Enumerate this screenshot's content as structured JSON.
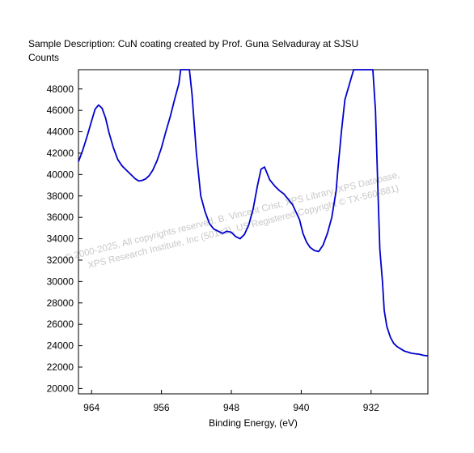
{
  "chart_data": {
    "type": "line",
    "title": "Sample Description:  CuN coating created by Prof. Guna Selvaduray at SJSU",
    "ylabel": "Counts",
    "xlabel": "Binding Energy, (eV)",
    "xlim": [
      965.5,
      925.5
    ],
    "ylim": [
      19500,
      49800
    ],
    "x_reversed": true,
    "x_ticks": [
      964,
      956,
      948,
      940,
      932
    ],
    "x_tick_labels": [
      "964",
      "956",
      "948",
      "940",
      "932"
    ],
    "y_ticks": [
      20000,
      22000,
      24000,
      26000,
      28000,
      30000,
      32000,
      34000,
      36000,
      38000,
      40000,
      42000,
      44000,
      46000,
      48000
    ],
    "y_tick_labels": [
      "20000",
      "22000",
      "24000",
      "26000",
      "28000",
      "30000",
      "32000",
      "34000",
      "36000",
      "38000",
      "40000",
      "42000",
      "44000",
      "46000",
      "48000"
    ],
    "grid": false,
    "line_color": "#0000cc",
    "series": [
      {
        "x": [
          965.5,
          965.0,
          964.5,
          964.0,
          963.6,
          963.2,
          962.8,
          962.4,
          962.0,
          961.5,
          961.0,
          960.5,
          960.0,
          959.5,
          959.0,
          958.6,
          958.2,
          957.8,
          957.4,
          957.0,
          956.5,
          956.0,
          955.5,
          955.0,
          954.5,
          954.0,
          953.8,
          953.4,
          953.0,
          952.8,
          952.5,
          952.0,
          951.5,
          951.0,
          950.5,
          950.0,
          949.5,
          949.0,
          948.5,
          948.0,
          947.5,
          947.0,
          946.5,
          946.0,
          945.5,
          945.0,
          944.6,
          944.2,
          944.0,
          943.6,
          943.0,
          942.5,
          942.0,
          941.5,
          941.0,
          940.6,
          940.2,
          939.8,
          939.4,
          939.0,
          938.5,
          938.0,
          937.5,
          937.0,
          936.5,
          936.0,
          935.8,
          935.4,
          935.0,
          934.0,
          933.0,
          932.3,
          932.0,
          931.8,
          931.5,
          931.2,
          931.0,
          930.7,
          930.5,
          930.2,
          929.8,
          929.4,
          929.0,
          928.6,
          928.2,
          927.8,
          927.4,
          927.0,
          926.5,
          926.0,
          925.5
        ],
        "y": [
          41200,
          42300,
          43600,
          45000,
          46100,
          46500,
          46200,
          45300,
          43900,
          42500,
          41400,
          40800,
          40400,
          40000,
          39600,
          39400,
          39450,
          39600,
          39900,
          40400,
          41300,
          42500,
          44000,
          45400,
          47000,
          48500,
          49800,
          49800,
          49800,
          49800,
          47500,
          42000,
          38000,
          36500,
          35400,
          34900,
          34700,
          34500,
          34700,
          34600,
          34200,
          34000,
          34400,
          35300,
          36800,
          39000,
          40500,
          40700,
          40300,
          39500,
          38900,
          38500,
          38200,
          37700,
          37200,
          36500,
          35800,
          34500,
          33700,
          33200,
          32900,
          32800,
          33400,
          34500,
          36000,
          38500,
          40500,
          44000,
          47000,
          49800,
          49800,
          49800,
          49800,
          49800,
          46000,
          38000,
          33000,
          30000,
          27300,
          25800,
          24800,
          24200,
          23900,
          23700,
          23500,
          23400,
          23300,
          23250,
          23200,
          23100,
          23050
        ]
      }
    ]
  },
  "watermark": {
    "line1": "© 2000-2025,  All copyrights reserved.   B. Vincent Crist,  XPS Library, XPS Database,",
    "line2": "XPS Research Institute, Inc (501c3),  US Registered Copyright © TX-560-881)"
  }
}
